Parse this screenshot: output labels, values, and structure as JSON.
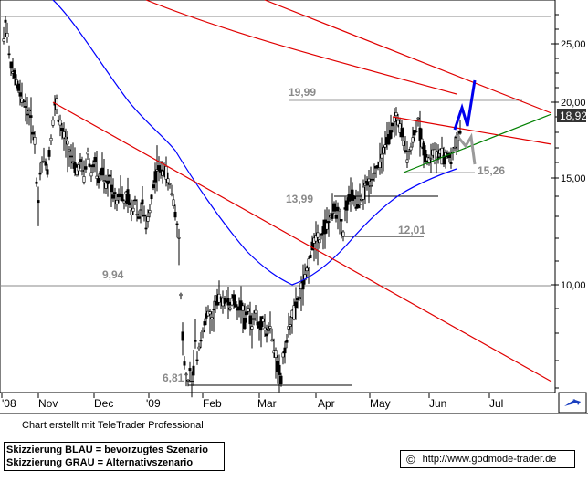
{
  "chart_data": {
    "type": "candlestick",
    "x_labels": [
      "'08",
      "Nov",
      "Dec",
      "'09",
      "Feb",
      "Mar",
      "Apr",
      "May",
      "Jun",
      "Jul"
    ],
    "y_ticks": [
      "25,00",
      "20,00",
      "15,00",
      "10,00"
    ],
    "y_scale": "log",
    "current_price": "18,92",
    "annotations": [
      "19,99",
      "13,99",
      "12,01",
      "9,94",
      "6,81",
      "15,26"
    ],
    "price_path": [
      [
        0,
        25.5
      ],
      [
        2,
        27.2
      ],
      [
        4,
        26.0
      ],
      [
        6,
        24.0
      ],
      [
        8,
        23.0
      ],
      [
        10,
        22.4
      ],
      [
        14,
        21.6
      ],
      [
        18,
        20.6
      ],
      [
        22,
        20.0
      ],
      [
        26,
        19.4
      ],
      [
        30,
        18.7
      ],
      [
        34,
        17.2
      ],
      [
        36,
        14.8
      ],
      [
        38,
        13.7
      ],
      [
        40,
        15.4
      ],
      [
        44,
        16.2
      ],
      [
        48,
        15.5
      ],
      [
        52,
        17.5
      ],
      [
        56,
        19.6
      ],
      [
        58,
        19.9
      ],
      [
        60,
        18.8
      ],
      [
        64,
        17.8
      ],
      [
        68,
        17.2
      ],
      [
        72,
        16.6
      ],
      [
        76,
        16.0
      ],
      [
        80,
        15.4
      ],
      [
        84,
        15.9
      ],
      [
        88,
        15.1
      ],
      [
        92,
        16.4
      ],
      [
        96,
        15.3
      ],
      [
        100,
        16.0
      ],
      [
        104,
        14.8
      ],
      [
        108,
        15.5
      ],
      [
        112,
        14.5
      ],
      [
        116,
        15.0
      ],
      [
        120,
        14.3
      ],
      [
        124,
        13.8
      ],
      [
        128,
        14.4
      ],
      [
        132,
        13.6
      ],
      [
        136,
        14.0
      ],
      [
        140,
        13.2
      ],
      [
        144,
        13.8
      ],
      [
        148,
        13.0
      ],
      [
        152,
        13.6
      ],
      [
        156,
        12.4
      ],
      [
        160,
        13.3
      ],
      [
        164,
        14.6
      ],
      [
        168,
        15.7
      ],
      [
        172,
        15.3
      ],
      [
        176,
        15.6
      ],
      [
        180,
        14.8
      ],
      [
        184,
        14.3
      ],
      [
        188,
        13.2
      ],
      [
        192,
        11.8
      ],
      [
        194,
        9.6
      ],
      [
        196,
        8.2
      ],
      [
        198,
        7.4
      ],
      [
        200,
        7.0
      ],
      [
        202,
        6.9
      ],
      [
        204,
        7.2
      ],
      [
        206,
        6.81
      ],
      [
        208,
        7.3
      ],
      [
        210,
        8.1
      ],
      [
        212,
        7.6
      ],
      [
        216,
        8.2
      ],
      [
        220,
        8.6
      ],
      [
        224,
        9.0
      ],
      [
        228,
        8.7
      ],
      [
        232,
        9.3
      ],
      [
        236,
        9.5
      ],
      [
        240,
        9.4
      ],
      [
        244,
        9.5
      ],
      [
        248,
        9.2
      ],
      [
        252,
        9.5
      ],
      [
        256,
        9.1
      ],
      [
        260,
        9.3
      ],
      [
        264,
        8.7
      ],
      [
        268,
        9.1
      ],
      [
        272,
        8.5
      ],
      [
        276,
        9.0
      ],
      [
        280,
        8.4
      ],
      [
        284,
        8.8
      ],
      [
        288,
        8.3
      ],
      [
        292,
        8.6
      ],
      [
        296,
        7.8
      ],
      [
        300,
        7.4
      ],
      [
        304,
        6.95
      ],
      [
        306,
        7.6
      ],
      [
        310,
        8.1
      ],
      [
        314,
        8.7
      ],
      [
        318,
        9.0
      ],
      [
        322,
        9.4
      ],
      [
        326,
        9.8
      ],
      [
        330,
        10.2
      ],
      [
        334,
        10.8
      ],
      [
        338,
        11.6
      ],
      [
        342,
        12.0
      ],
      [
        346,
        11.8
      ],
      [
        350,
        12.3
      ],
      [
        354,
        12.6
      ],
      [
        358,
        12.9
      ],
      [
        362,
        13.4
      ],
      [
        366,
        13.2
      ],
      [
        370,
        12.6
      ],
      [
        372,
        12.1
      ],
      [
        374,
        13.2
      ],
      [
        378,
        13.9
      ],
      [
        382,
        14.0
      ],
      [
        386,
        13.6
      ],
      [
        390,
        13.8
      ],
      [
        394,
        14.1
      ],
      [
        398,
        14.6
      ],
      [
        402,
        14.9
      ],
      [
        406,
        15.3
      ],
      [
        410,
        15.7
      ],
      [
        414,
        16.2
      ],
      [
        418,
        16.9
      ],
      [
        422,
        17.5
      ],
      [
        426,
        18.2
      ],
      [
        430,
        18.8
      ],
      [
        434,
        18.3
      ],
      [
        438,
        17.2
      ],
      [
        442,
        16.4
      ],
      [
        446,
        16.8
      ],
      [
        450,
        17.8
      ],
      [
        454,
        18.6
      ],
      [
        458,
        17.2
      ],
      [
        462,
        16.4
      ],
      [
        466,
        16.0
      ],
      [
        470,
        16.6
      ],
      [
        474,
        16.2
      ],
      [
        478,
        16.5
      ],
      [
        482,
        16.1
      ],
      [
        486,
        16.4
      ],
      [
        490,
        16.1
      ],
      [
        494,
        16.9
      ],
      [
        498,
        17.6
      ],
      [
        500,
        18.0
      ]
    ]
  },
  "credit": "Chart erstellt mit TeleTrader Professional",
  "legend": {
    "blue": "Skizzierung BLAU = bevorzugtes Szenario",
    "grey": "Skizzierung GRAU = Alternativszenario"
  },
  "url": "http://www.godmode-trader.de",
  "copyright_symbol": "©",
  "colors": {
    "price": "#000000",
    "trendline_red": "#e00000",
    "ma_blue": "#0000ff",
    "support_green": "#008000",
    "scenario_blue": "#0000ee",
    "scenario_grey": "#9a9a9a",
    "badge_bg": "#333333",
    "badge_text": "#ffffff"
  }
}
